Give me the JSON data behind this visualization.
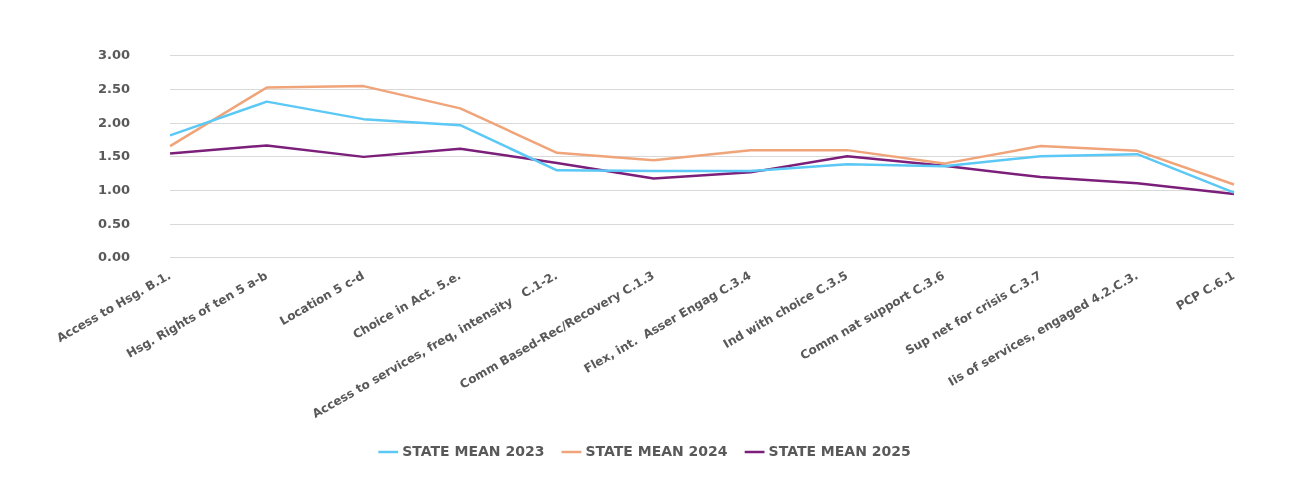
{
  "chart_data": {
    "type": "line",
    "categories": [
      "Access to Hsg. B.1.",
      "Hsg. Rights of ten 5 a-b",
      "Location 5 c-d",
      "Choice in Act. 5.e.",
      "Access to services, freq, intensity   C.1-2.",
      "Comm Based-Rec/Recovery C.1.3",
      "Flex, int.  Asser Engag C.3.4",
      "Ind with choice C.3.5",
      "Comm nat support C.3.6",
      "Sup net for crisis C.3.7",
      "Iis of services, engaged 4.2.C.3.",
      "PCP C.6.1"
    ],
    "series": [
      {
        "name": "STATE MEAN 2023",
        "color": "#5bc8f5",
        "values": [
          1.82,
          2.32,
          2.06,
          1.97,
          1.3,
          1.29,
          1.29,
          1.39,
          1.36,
          1.51,
          1.54,
          0.97
        ]
      },
      {
        "name": "STATE MEAN 2024",
        "color": "#f0a47a",
        "values": [
          1.66,
          2.53,
          2.55,
          2.22,
          1.56,
          1.45,
          1.6,
          1.6,
          1.4,
          1.66,
          1.59,
          1.09
        ]
      },
      {
        "name": "STATE MEAN 2025",
        "color": "#7b1f7a",
        "values": [
          1.55,
          1.67,
          1.5,
          1.62,
          1.41,
          1.18,
          1.27,
          1.51,
          1.37,
          1.2,
          1.11,
          0.95
        ]
      }
    ],
    "ylim": [
      0,
      3
    ],
    "yticks": [
      {
        "value": 0,
        "label": "0.00"
      },
      {
        "value": 0.5,
        "label": "0.50"
      },
      {
        "value": 1,
        "label": "1.00"
      },
      {
        "value": 1.5,
        "label": "1.50"
      },
      {
        "value": 2,
        "label": "2.00"
      },
      {
        "value": 2.5,
        "label": "2.50"
      },
      {
        "value": 3,
        "label": "3.00"
      }
    ],
    "grid": "y",
    "legend": "bottom",
    "marker": "none",
    "line_style": "solid"
  }
}
